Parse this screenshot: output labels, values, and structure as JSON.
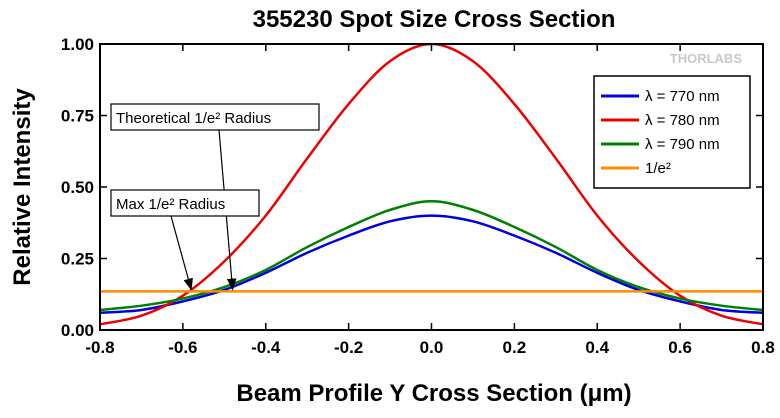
{
  "chart_data": {
    "type": "line",
    "title": "355230 Spot Size Cross Section",
    "xlabel": "Beam Profile Y Cross Section (μm)",
    "ylabel": "Relative Intensity",
    "xlim": [
      -0.8,
      0.8
    ],
    "ylim": [
      0,
      1.0
    ],
    "x_ticks": [
      "-0.8",
      "-0.6",
      "-0.4",
      "-0.2",
      "0.0",
      "0.2",
      "0.4",
      "0.6",
      "0.8"
    ],
    "y_ticks": [
      "0.00",
      "0.25",
      "0.50",
      "0.75",
      "1.00"
    ],
    "grid": false,
    "legend_position": "top-right",
    "series": [
      {
        "name": "λ = 770 nm",
        "color": "#0000dd",
        "x": [
          -0.8,
          -0.7,
          -0.6,
          -0.5,
          -0.4,
          -0.3,
          -0.2,
          -0.1,
          0.0,
          0.1,
          0.2,
          0.3,
          0.4,
          0.5,
          0.6,
          0.7,
          0.8
        ],
        "y": [
          0.06,
          0.07,
          0.1,
          0.14,
          0.2,
          0.27,
          0.33,
          0.38,
          0.4,
          0.38,
          0.33,
          0.27,
          0.2,
          0.14,
          0.1,
          0.07,
          0.06
        ]
      },
      {
        "name": "λ = 780 nm",
        "color": "#ee0000",
        "x": [
          -0.8,
          -0.7,
          -0.6,
          -0.5,
          -0.4,
          -0.3,
          -0.2,
          -0.1,
          0.0,
          0.1,
          0.2,
          0.3,
          0.4,
          0.5,
          0.6,
          0.7,
          0.8
        ],
        "y": [
          0.02,
          0.05,
          0.12,
          0.24,
          0.4,
          0.6,
          0.79,
          0.94,
          1.0,
          0.94,
          0.79,
          0.6,
          0.4,
          0.24,
          0.12,
          0.05,
          0.02
        ]
      },
      {
        "name": "λ = 790 nm",
        "color": "#008000",
        "x": [
          -0.8,
          -0.7,
          -0.6,
          -0.5,
          -0.4,
          -0.3,
          -0.2,
          -0.1,
          0.0,
          0.1,
          0.2,
          0.3,
          0.4,
          0.5,
          0.6,
          0.7,
          0.8
        ],
        "y": [
          0.07,
          0.085,
          0.11,
          0.15,
          0.21,
          0.29,
          0.36,
          0.42,
          0.45,
          0.42,
          0.36,
          0.29,
          0.21,
          0.15,
          0.11,
          0.085,
          0.07
        ]
      },
      {
        "name": "1/e²",
        "color": "#ff8c00",
        "x": [
          -0.8,
          0.8
        ],
        "y": [
          0.135,
          0.135
        ]
      }
    ],
    "annotations": [
      {
        "text": "Theoretical 1/e² Radius",
        "target_x": -0.48,
        "target_y": 0.135
      },
      {
        "text": "Max 1/e² Radius",
        "target_x": -0.58,
        "target_y": 0.135
      }
    ],
    "watermark": "THORLABS"
  }
}
